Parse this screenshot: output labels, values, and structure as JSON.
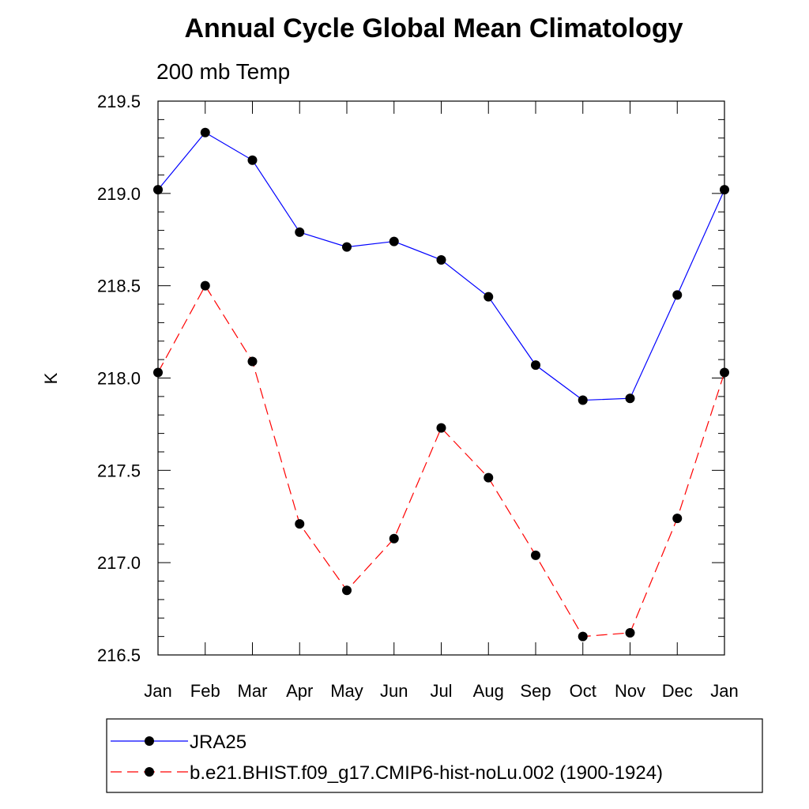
{
  "chart_data": {
    "type": "line",
    "title": "Annual Cycle Global Mean Climatology",
    "subtitle": "200 mb Temp",
    "ylabel": "K",
    "xlabel": "",
    "categories": [
      "Jan",
      "Feb",
      "Mar",
      "Apr",
      "May",
      "Jun",
      "Jul",
      "Aug",
      "Sep",
      "Oct",
      "Nov",
      "Dec",
      "Jan"
    ],
    "yticks": [
      "216.5",
      "217.0",
      "217.5",
      "218.0",
      "218.5",
      "219.0",
      "219.5"
    ],
    "ylim": [
      216.5,
      219.5
    ],
    "grid": false,
    "legend_position": "bottom",
    "series": [
      {
        "name": "JRA25",
        "color": "#0000ff",
        "dash": "solid",
        "marker": "filled-circle",
        "values": [
          219.02,
          219.33,
          219.18,
          218.79,
          218.71,
          218.74,
          218.64,
          218.44,
          218.07,
          217.88,
          217.89,
          218.45,
          219.02
        ]
      },
      {
        "name": "b.e21.BHIST.f09_g17.CMIP6-hist-noLu.002 (1900-1924)",
        "color": "#ff0000",
        "dash": "dashed",
        "marker": "filled-circle",
        "values": [
          218.03,
          218.5,
          218.09,
          217.21,
          216.85,
          217.13,
          217.73,
          217.46,
          217.04,
          216.6,
          216.62,
          217.24,
          218.03
        ]
      }
    ]
  }
}
